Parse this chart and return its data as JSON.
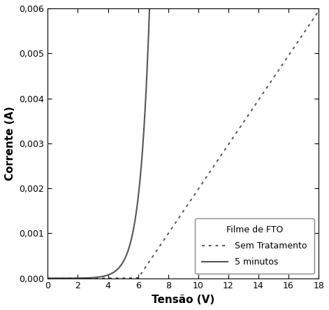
{
  "title": "",
  "xlabel": "Tensão (V)",
  "ylabel": "Corrente (A)",
  "xlim": [
    0,
    18
  ],
  "ylim": [
    0,
    0.006
  ],
  "xticks": [
    0,
    2,
    4,
    6,
    8,
    10,
    12,
    14,
    16,
    18
  ],
  "yticks": [
    0.0,
    0.001,
    0.002,
    0.003,
    0.004,
    0.005,
    0.006
  ],
  "ytick_labels": [
    "0,000",
    "0,001",
    "0,002",
    "0,003",
    "0,004",
    "0,005",
    "0,006"
  ],
  "legend_title": "Filme de FTO",
  "legend_labels": [
    "Sem Tratamento",
    "5 minutos"
  ],
  "line_color": "#555555",
  "background_color": "#ffffff",
  "solid_V_th": 2.0,
  "solid_k": 1.6,
  "solid_I0": 1.2e-07,
  "dot_V_th": 6.0,
  "dot_slope": 0.000495
}
